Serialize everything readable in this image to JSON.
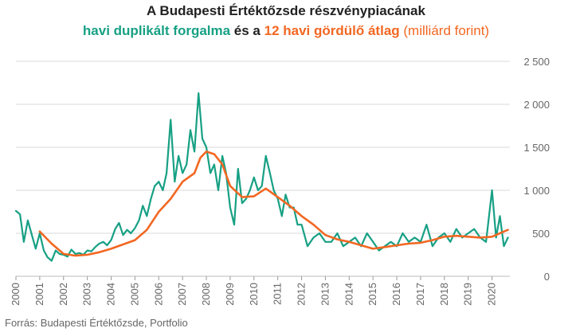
{
  "header": {
    "line1": "A Budapesti Értéktőzsde részvénypiacának",
    "line2_part1": "havi duplikált forgalma",
    "line2_part2": " és a ",
    "line2_part3": "12 havi gördülő átlag",
    "line2_part4": " (milliárd forint)"
  },
  "source": "Forrás: Budapesti Értéktőzsde, Portfolio",
  "colors": {
    "monthly": "#17a084",
    "average": "#f26722",
    "grid": "#d9d9d9",
    "text": "#666666"
  },
  "chart_data": {
    "type": "line",
    "title": "A Budapesti Értéktőzsde részvénypiacának havi duplikált forgalma és a 12 havi gördülő átlag (milliárd forint)",
    "x_unit": "év",
    "ylim": [
      0,
      2500
    ],
    "yticks": [
      0,
      500,
      1000,
      1500,
      2000,
      2500
    ],
    "ytick_labels": [
      "0",
      "500",
      "1 000",
      "1 500",
      "2 000",
      "2 500"
    ],
    "xlim": [
      2000,
      2020.75
    ],
    "xticks": [
      "2000",
      "2001",
      "2002",
      "2003",
      "2004",
      "2005",
      "2006",
      "2007",
      "2008",
      "2009",
      "2010",
      "2011",
      "2012",
      "2013",
      "2014",
      "2015",
      "2016",
      "2017",
      "2018",
      "2019",
      "2020"
    ],
    "grid": true,
    "y_axis_position": "right",
    "series": [
      {
        "name": "havi duplikált forgalma",
        "color": "#17a084",
        "x": [
          2000.0,
          2000.17,
          2000.33,
          2000.5,
          2000.67,
          2000.83,
          2001.0,
          2001.17,
          2001.33,
          2001.5,
          2001.67,
          2001.83,
          2002.0,
          2002.17,
          2002.33,
          2002.5,
          2002.67,
          2002.83,
          2003.0,
          2003.17,
          2003.33,
          2003.5,
          2003.67,
          2003.83,
          2004.0,
          2004.17,
          2004.33,
          2004.5,
          2004.67,
          2004.83,
          2005.0,
          2005.17,
          2005.33,
          2005.5,
          2005.67,
          2005.83,
          2006.0,
          2006.17,
          2006.33,
          2006.5,
          2006.67,
          2006.83,
          2007.0,
          2007.17,
          2007.33,
          2007.5,
          2007.67,
          2007.83,
          2008.0,
          2008.17,
          2008.33,
          2008.5,
          2008.67,
          2008.83,
          2009.0,
          2009.17,
          2009.33,
          2009.5,
          2009.67,
          2009.83,
          2010.0,
          2010.17,
          2010.33,
          2010.5,
          2010.67,
          2010.83,
          2011.0,
          2011.17,
          2011.33,
          2011.5,
          2011.67,
          2011.83,
          2012.0,
          2012.25,
          2012.5,
          2012.75,
          2013.0,
          2013.25,
          2013.5,
          2013.75,
          2014.0,
          2014.25,
          2014.5,
          2014.75,
          2015.0,
          2015.25,
          2015.5,
          2015.75,
          2016.0,
          2016.25,
          2016.5,
          2016.75,
          2017.0,
          2017.25,
          2017.5,
          2017.75,
          2018.0,
          2018.25,
          2018.5,
          2018.75,
          2019.0,
          2019.25,
          2019.5,
          2019.75,
          2020.0,
          2020.17,
          2020.33,
          2020.5,
          2020.67
        ],
        "values": [
          760,
          720,
          400,
          650,
          480,
          320,
          500,
          300,
          220,
          180,
          300,
          260,
          250,
          230,
          310,
          260,
          270,
          250,
          300,
          290,
          340,
          380,
          400,
          360,
          420,
          550,
          620,
          480,
          540,
          500,
          560,
          650,
          820,
          700,
          900,
          1050,
          1100,
          1000,
          1200,
          1820,
          1100,
          1400,
          1200,
          1300,
          1700,
          1450,
          2130,
          1600,
          1500,
          1200,
          1300,
          1000,
          1400,
          1200,
          800,
          600,
          1250,
          850,
          900,
          1000,
          1150,
          1000,
          1050,
          1400,
          1200,
          1000,
          900,
          700,
          950,
          800,
          800,
          600,
          600,
          350,
          450,
          500,
          400,
          400,
          500,
          350,
          400,
          450,
          350,
          500,
          400,
          300,
          350,
          400,
          350,
          500,
          400,
          450,
          400,
          600,
          350,
          450,
          500,
          400,
          550,
          450,
          500,
          550,
          450,
          400,
          1000,
          450,
          700,
          350,
          450
        ]
      },
      {
        "name": "12 havi gördülő átlag",
        "color": "#f26722",
        "x": [
          2001.0,
          2001.5,
          2002.0,
          2002.5,
          2003.0,
          2003.5,
          2004.0,
          2004.5,
          2005.0,
          2005.5,
          2006.0,
          2006.5,
          2007.0,
          2007.5,
          2007.75,
          2008.0,
          2008.33,
          2008.67,
          2009.0,
          2009.5,
          2010.0,
          2010.5,
          2011.0,
          2011.5,
          2012.0,
          2012.5,
          2013.0,
          2013.5,
          2014.0,
          2014.5,
          2015.0,
          2015.5,
          2016.0,
          2016.5,
          2017.0,
          2017.5,
          2018.0,
          2018.5,
          2019.0,
          2019.5,
          2020.0,
          2020.5,
          2020.67
        ],
        "values": [
          520,
          380,
          260,
          240,
          250,
          280,
          320,
          370,
          420,
          540,
          750,
          900,
          1100,
          1200,
          1380,
          1450,
          1420,
          1300,
          1050,
          920,
          930,
          1020,
          920,
          820,
          700,
          600,
          480,
          430,
          400,
          360,
          320,
          340,
          360,
          380,
          390,
          420,
          460,
          470,
          460,
          450,
          460,
          520,
          540
        ]
      }
    ]
  }
}
